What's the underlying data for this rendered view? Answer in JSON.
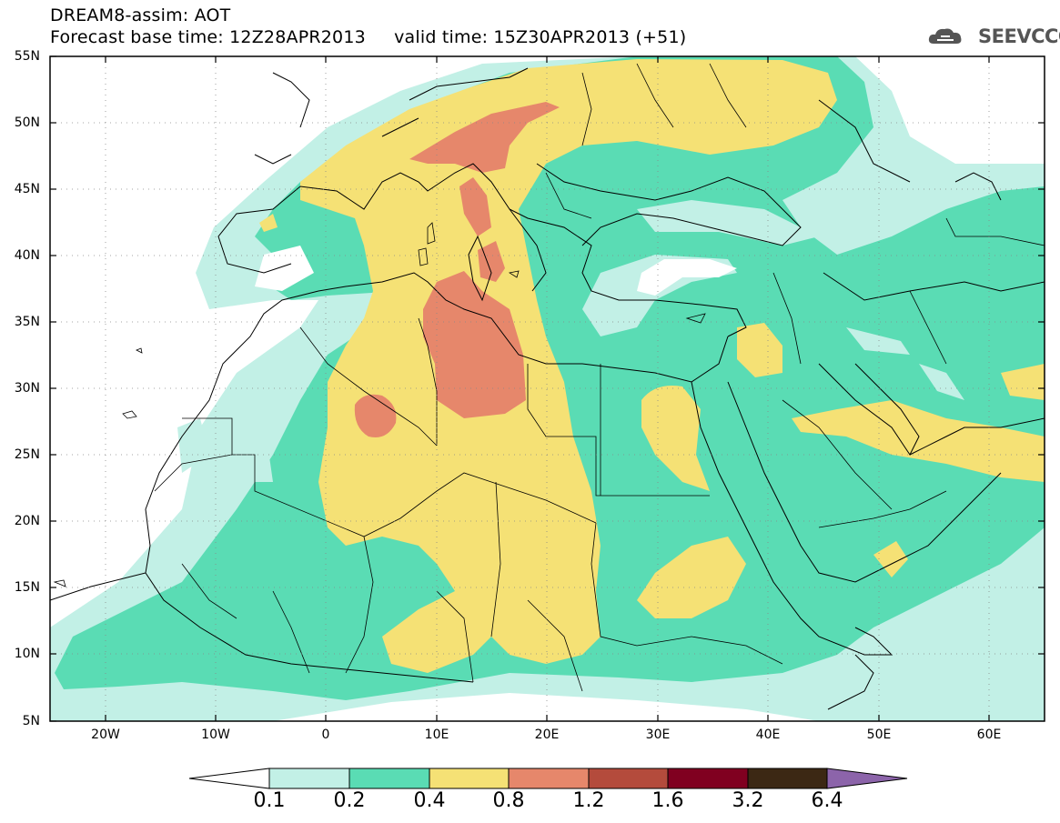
{
  "title": {
    "line1": "DREAM8-assim: AOT",
    "line2": "Forecast base time: 12Z28APR2013     valid time: 15Z30APR2013 (+51)"
  },
  "logo": {
    "text": "SEEVCCC",
    "icon": "cloud-icon"
  },
  "axes": {
    "lat_labels": [
      "55N",
      "50N",
      "45N",
      "40N",
      "35N",
      "30N",
      "25N",
      "20N",
      "15N",
      "10N",
      "5N"
    ],
    "lon_labels": [
      "20W",
      "10W",
      "0",
      "10E",
      "20E",
      "30E",
      "40E",
      "50E",
      "60E"
    ]
  },
  "colorbar": {
    "labels": [
      "0.1",
      "0.2",
      "0.4",
      "0.8",
      "1.2",
      "1.6",
      "3.2",
      "6.4"
    ],
    "colors": [
      "#ffffff",
      "#c2f0e6",
      "#5adcb4",
      "#f5e175",
      "#e6876b",
      "#b44b3c",
      "#800020",
      "#3c2814",
      "#8c64aa"
    ]
  },
  "colors": {
    "low": "#c2f0e6",
    "mid": "#5adcb4",
    "high": "#f5e175",
    "vhigh": "#e6876b"
  }
}
